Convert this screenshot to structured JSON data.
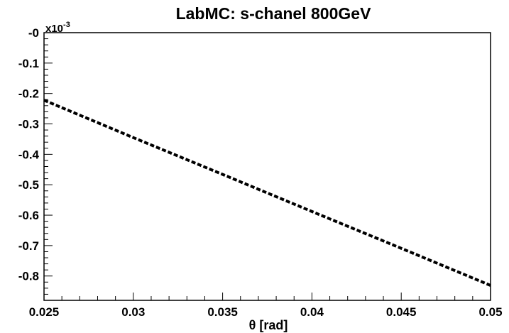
{
  "chart_data": {
    "type": "line",
    "title": "LabMC: s-chanel  800GeV",
    "xlabel": "θ [rad]",
    "ylabel": "",
    "y_scale_factor": {
      "base": "x10",
      "exponent": "-3"
    },
    "xlim": [
      0.025,
      0.05
    ],
    "ylim": [
      -0.88,
      0.0
    ],
    "x_ticks": [
      0.025,
      0.03,
      0.035,
      0.04,
      0.045,
      0.05
    ],
    "x_tick_labels": [
      "0.025",
      "0.03",
      "0.035",
      "0.04",
      "0.045",
      "0.05"
    ],
    "y_ticks": [
      0.0,
      -0.1,
      -0.2,
      -0.3,
      -0.4,
      -0.5,
      -0.6,
      -0.7,
      -0.8
    ],
    "y_tick_labels": [
      "-0",
      "-0.1",
      "-0.2",
      "-0.3",
      "-0.4",
      "-0.5",
      "-0.6",
      "-0.7",
      "-0.8"
    ],
    "grid": false,
    "series": [
      {
        "x": [
          0.025,
          0.03,
          0.035,
          0.04,
          0.045,
          0.05
        ],
        "values": [
          -0.222,
          -0.345,
          -0.466,
          -0.588,
          -0.709,
          -0.831
        ],
        "style": "dashed",
        "color": "#000000"
      }
    ]
  }
}
